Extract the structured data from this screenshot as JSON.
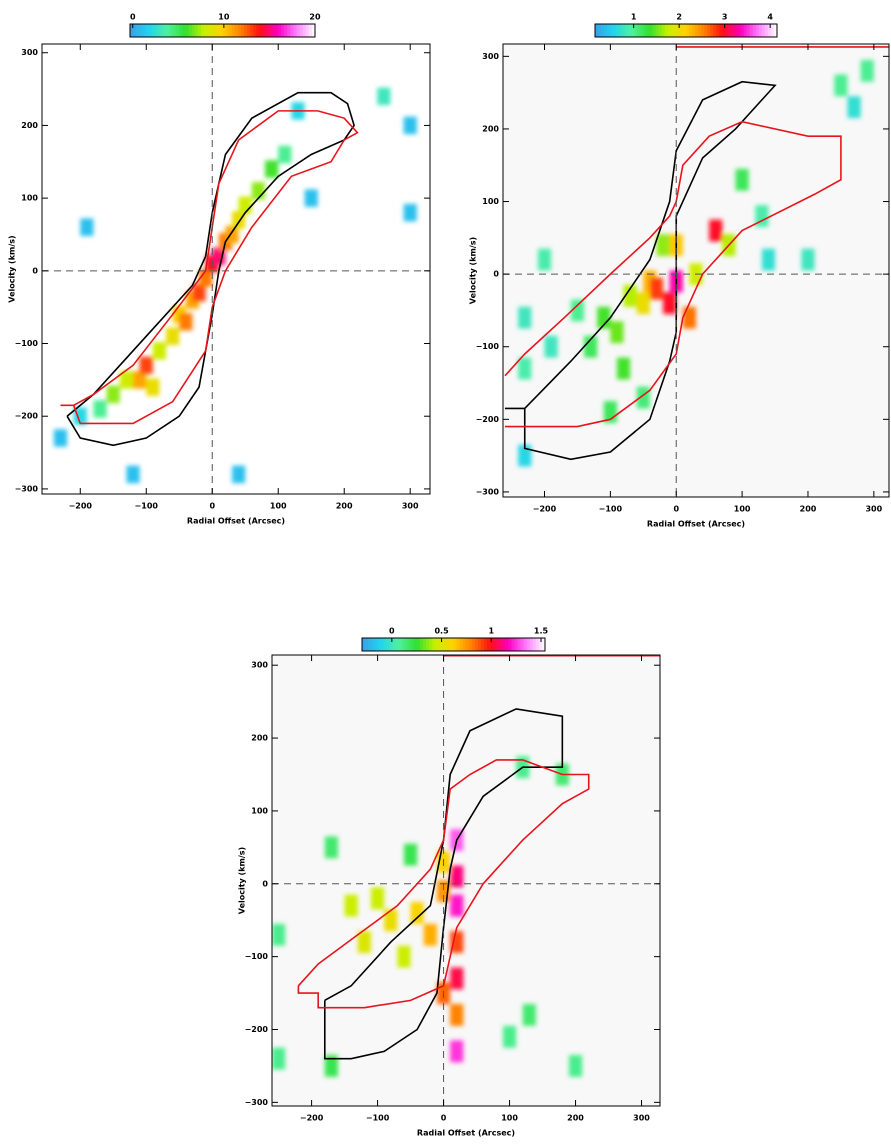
{
  "chart_data": [
    {
      "type": "pv-diagram",
      "xlabel": "Radial Offset (Arcsec)",
      "ylabel": "Velocity (km/s)",
      "background": "#ffffff",
      "xlim": [
        -258,
        330
      ],
      "ylim": [
        -307,
        312
      ],
      "xticks": [
        {
          "value": -200,
          "label": "−200"
        },
        {
          "value": -100,
          "label": "−100"
        },
        0,
        100,
        200,
        300
      ],
      "yticks": [
        {
          "value": -300,
          "label": "−300"
        },
        {
          "value": -200,
          "label": "−200"
        },
        {
          "value": -100,
          "label": "−100"
        },
        0,
        100,
        200,
        300
      ],
      "colorbar": {
        "lim": [
          -0.3,
          20
        ],
        "ticks": [
          0,
          10,
          20
        ],
        "colors": [
          "#3a9fe8",
          "#22d3f0",
          "#50f0a0",
          "#30e030",
          "#c8f000",
          "#ffd000",
          "#ff8000",
          "#ff1010",
          "#ff00c0",
          "#ff80ff",
          "#ffffff"
        ]
      },
      "cell_size": [
        20,
        24
      ],
      "cells": {
        "x": [
          -230,
          -200,
          -170,
          -150,
          -130,
          -110,
          -100,
          -90,
          -80,
          -60,
          -50,
          -40,
          -30,
          -20,
          -10,
          0,
          10,
          20,
          30,
          40,
          50,
          70,
          90,
          110,
          130,
          150,
          -190,
          -120,
          40,
          300,
          300,
          260
        ],
        "y": [
          -230,
          -200,
          -190,
          -170,
          -150,
          -150,
          -130,
          -160,
          -110,
          -90,
          -60,
          -70,
          -40,
          -30,
          -10,
          10,
          20,
          40,
          50,
          70,
          90,
          110,
          140,
          160,
          220,
          100,
          60,
          -280,
          -280,
          200,
          80,
          240
        ],
        "values": [
          1,
          2,
          4,
          7,
          8,
          11,
          13,
          9,
          8,
          9,
          10,
          12,
          11,
          13,
          12,
          14,
          15,
          12,
          11,
          9,
          8,
          7,
          6,
          4,
          2,
          1,
          1,
          1,
          1,
          1,
          1,
          3
        ]
      },
      "curves": [
        {
          "color": "#000000",
          "x": [
            -220,
            -200,
            -150,
            -100,
            -50,
            -20,
            0,
            10,
            20,
            50,
            100,
            150,
            200,
            215,
            205,
            180,
            130,
            60,
            20,
            0,
            -10,
            -30,
            -80,
            -130,
            -180,
            -220
          ],
          "y": [
            -200,
            -230,
            -240,
            -230,
            -200,
            -160,
            -60,
            0,
            40,
            80,
            130,
            160,
            180,
            200,
            230,
            245,
            245,
            210,
            160,
            80,
            20,
            -20,
            -70,
            -120,
            -170,
            -200
          ]
        },
        {
          "color": "#e8141c",
          "x": [
            -230,
            -210,
            -200,
            -120,
            -60,
            -10,
            0,
            20,
            60,
            120,
            180,
            200,
            220,
            200,
            160,
            100,
            40,
            10,
            0,
            -10,
            -60,
            -120,
            -180,
            -210
          ],
          "y": [
            -185,
            -185,
            -210,
            -210,
            -180,
            -110,
            -50,
            0,
            60,
            130,
            150,
            180,
            190,
            210,
            220,
            220,
            180,
            120,
            60,
            0,
            -60,
            -130,
            -170,
            -185
          ]
        },
        {
          "color": "#e8141c",
          "x": [
            0,
            330
          ],
          "y": [
            313,
            313
          ]
        }
      ]
    },
    {
      "type": "pv-diagram",
      "xlabel": "Radial Offset (Arcsec)",
      "ylabel": "Velocity (km/s)",
      "background": "#f8f8f8",
      "xlim": [
        -263,
        323
      ],
      "ylim": [
        -307,
        317
      ],
      "xticks": [
        {
          "value": -200,
          "label": "−200"
        },
        {
          "value": -100,
          "label": "−100"
        },
        0,
        100,
        200,
        300
      ],
      "yticks": [
        {
          "value": -300,
          "label": "−300"
        },
        {
          "value": -200,
          "label": "−200"
        },
        {
          "value": -100,
          "label": "−100"
        },
        0,
        100,
        200,
        300
      ],
      "colorbar": {
        "lim": [
          0.15,
          4.15
        ],
        "ticks": [
          1,
          2,
          3,
          4
        ],
        "colors": [
          "#3a9fe8",
          "#22d3f0",
          "#50f0a0",
          "#30e030",
          "#c8f000",
          "#ffd000",
          "#ff8000",
          "#ff1010",
          "#ff00c0",
          "#ff80ff",
          "#ffffff"
        ]
      },
      "cell_size": [
        20,
        30
      ],
      "cells": {
        "x": [
          -230,
          -230,
          -200,
          -190,
          -150,
          -130,
          -110,
          -90,
          -80,
          -70,
          -50,
          -40,
          -30,
          -10,
          0,
          0,
          -20,
          20,
          30,
          60,
          80,
          100,
          130,
          140,
          200,
          250,
          290,
          270,
          -230,
          -100,
          -50
        ],
        "y": [
          -60,
          -130,
          20,
          -100,
          -50,
          -100,
          -60,
          -80,
          -130,
          -30,
          -40,
          -10,
          -20,
          -40,
          -10,
          40,
          40,
          -60,
          0,
          60,
          40,
          130,
          80,
          20,
          20,
          260,
          280,
          230,
          -250,
          -190,
          -170
        ],
        "values": [
          0.8,
          0.9,
          0.9,
          0.8,
          1,
          1.2,
          1.4,
          1.5,
          1.4,
          1.7,
          2,
          2.3,
          2.8,
          3,
          3.3,
          2.2,
          1.6,
          2.6,
          1.8,
          3,
          1.7,
          1.2,
          0.9,
          0.7,
          0.8,
          1,
          1,
          0.7,
          0.6,
          1.2,
          1.1
        ]
      },
      "curves": [
        {
          "color": "#000000",
          "x": [
            -260,
            -230,
            -230,
            -160,
            -100,
            -40,
            -10,
            0,
            0,
            10,
            40,
            90,
            130,
            150,
            100,
            40,
            0,
            -10,
            -40,
            -100,
            -160,
            -230
          ],
          "y": [
            -185,
            -185,
            -240,
            -255,
            -245,
            -200,
            -120,
            -80,
            80,
            100,
            160,
            200,
            240,
            260,
            265,
            240,
            170,
            100,
            20,
            -60,
            -120,
            -185
          ]
        },
        {
          "color": "#e8141c",
          "x": [
            -260,
            -230,
            -170,
            -100,
            -40,
            -10,
            0,
            10,
            50,
            100,
            200,
            250,
            250,
            210,
            100,
            40,
            10,
            0,
            -40,
            -100,
            -150,
            -230,
            -260
          ],
          "y": [
            -140,
            -110,
            -60,
            0,
            50,
            80,
            100,
            150,
            190,
            210,
            190,
            190,
            130,
            110,
            60,
            0,
            -60,
            -110,
            -160,
            -200,
            -210,
            -210,
            -210
          ]
        },
        {
          "color": "#e8141c",
          "x": [
            0,
            323
          ],
          "y": [
            313,
            313
          ]
        }
      ]
    },
    {
      "type": "pv-diagram",
      "xlabel": "Radial Offset (Arcsec)",
      "ylabel": "Velocity (km/s)",
      "background": "#f8f8f8",
      "xlim": [
        -260,
        328
      ],
      "ylim": [
        -305,
        314
      ],
      "xticks": [
        {
          "value": -200,
          "label": "−200"
        },
        {
          "value": -100,
          "label": "−100"
        },
        0,
        100,
        200,
        300
      ],
      "yticks": [
        {
          "value": -300,
          "label": "−300"
        },
        {
          "value": -200,
          "label": "−200"
        },
        {
          "value": -100,
          "label": "−100"
        },
        0,
        100,
        200,
        300
      ],
      "colorbar": {
        "lim": [
          -0.3,
          1.54
        ],
        "ticks": [
          0,
          0.5,
          1,
          1.5
        ],
        "colors": [
          "#3a9fe8",
          "#22d3f0",
          "#50f0a0",
          "#30e030",
          "#c8f000",
          "#ffd000",
          "#ff8000",
          "#ff1010",
          "#ff00c0",
          "#ff80ff",
          "#ffffff"
        ]
      },
      "cell_size": [
        20,
        30
      ],
      "cells": {
        "x": [
          -250,
          -170,
          -140,
          -120,
          -100,
          -80,
          -60,
          -40,
          -20,
          0,
          0,
          0,
          20,
          20,
          20,
          20,
          20,
          20,
          20,
          -50,
          100,
          130,
          120,
          200,
          -250,
          -170,
          180
        ],
        "y": [
          -70,
          50,
          -30,
          -80,
          -20,
          -50,
          -100,
          -40,
          -70,
          -10,
          -150,
          30,
          60,
          10,
          -30,
          -80,
          -130,
          -180,
          -230,
          40,
          -210,
          -180,
          160,
          -250,
          -240,
          -250,
          150
        ],
        "values": [
          0.1,
          0.15,
          0.45,
          0.5,
          0.45,
          0.55,
          0.45,
          0.6,
          0.7,
          0.75,
          0.85,
          0.6,
          1.3,
          1.1,
          1.2,
          0.9,
          1.05,
          0.8,
          1.25,
          0.2,
          0.1,
          0.15,
          0.1,
          0.1,
          0.1,
          0.2,
          0.15
        ]
      },
      "curves": [
        {
          "color": "#000000",
          "x": [
            -180,
            -180,
            -140,
            -90,
            -40,
            -10,
            0,
            10,
            20,
            60,
            120,
            180,
            180,
            110,
            40,
            10,
            0,
            -20,
            -80,
            -140,
            -180
          ],
          "y": [
            -160,
            -240,
            -240,
            -230,
            -200,
            -150,
            -60,
            20,
            60,
            120,
            160,
            160,
            230,
            240,
            210,
            150,
            60,
            -30,
            -80,
            -140,
            -160
          ]
        },
        {
          "color": "#e8141c",
          "x": [
            -220,
            -190,
            -130,
            -70,
            -20,
            0,
            10,
            40,
            80,
            120,
            180,
            220,
            220,
            180,
            120,
            60,
            20,
            0,
            -50,
            -120,
            -190,
            -190,
            -220,
            -220
          ],
          "y": [
            -140,
            -110,
            -70,
            -30,
            20,
            60,
            130,
            150,
            170,
            170,
            150,
            150,
            130,
            110,
            60,
            0,
            -60,
            -140,
            -160,
            -170,
            -170,
            -150,
            -150,
            -140
          ]
        },
        {
          "color": "#e8141c",
          "x": [
            0,
            328
          ],
          "y": [
            313,
            313
          ]
        }
      ]
    }
  ]
}
